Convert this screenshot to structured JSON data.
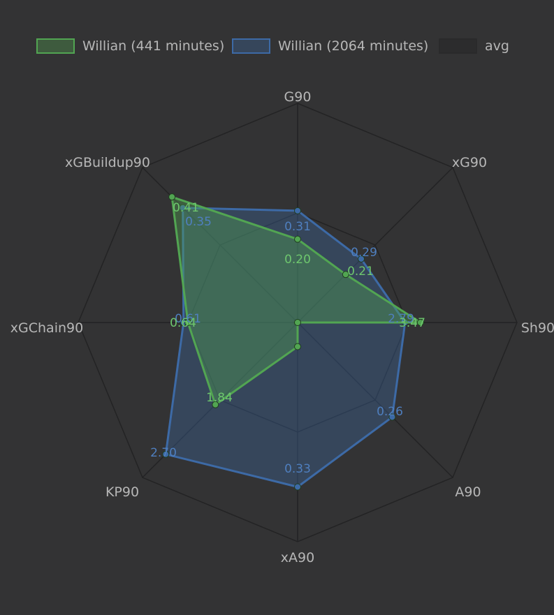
{
  "colors": {
    "background": "#333334",
    "grid": "#232324",
    "series_green": "#52a552",
    "series_blue": "#3d6aa6",
    "avg": "#2a2a2b"
  },
  "legend": [
    {
      "label": "Willian (441 minutes)",
      "color": "#52a552"
    },
    {
      "label": "Willian (2064 minutes)",
      "color": "#3d6aa6"
    },
    {
      "label": "avg",
      "color": "#2a2a2b"
    }
  ],
  "chart_data": {
    "type": "radar",
    "title": "",
    "axes": [
      "G90",
      "xG90",
      "Sh90",
      "A90",
      "xA90",
      "KP90",
      "xGChain90",
      "xGBuildup90"
    ],
    "grid": true,
    "legend_position": "top",
    "series": [
      {
        "name": "Willian (441 minutes)",
        "color": "#52a552",
        "values": [
          0.2,
          0.21,
          3.47,
          0.0,
          0.06,
          1.84,
          0.64,
          0.41
        ],
        "normalized": [
          0.38,
          0.31,
          0.56,
          0.0,
          0.11,
          0.53,
          0.5,
          0.81
        ],
        "labels": [
          "0.20",
          "0.21",
          "3.47",
          "",
          "",
          "1.84",
          "0.64",
          "0.41"
        ]
      },
      {
        "name": "Willian (2064 minutes)",
        "color": "#3d6aa6",
        "values": [
          0.31,
          0.29,
          2.79,
          0.26,
          0.33,
          2.7,
          0.61,
          0.35
        ],
        "normalized": [
          0.51,
          0.41,
          0.49,
          0.61,
          0.75,
          0.85,
          0.52,
          0.74
        ],
        "labels": [
          "0.31",
          "0.29",
          "2.79",
          "0.26",
          "0.33",
          "2.70",
          "0.61",
          "0.35"
        ]
      }
    ]
  }
}
